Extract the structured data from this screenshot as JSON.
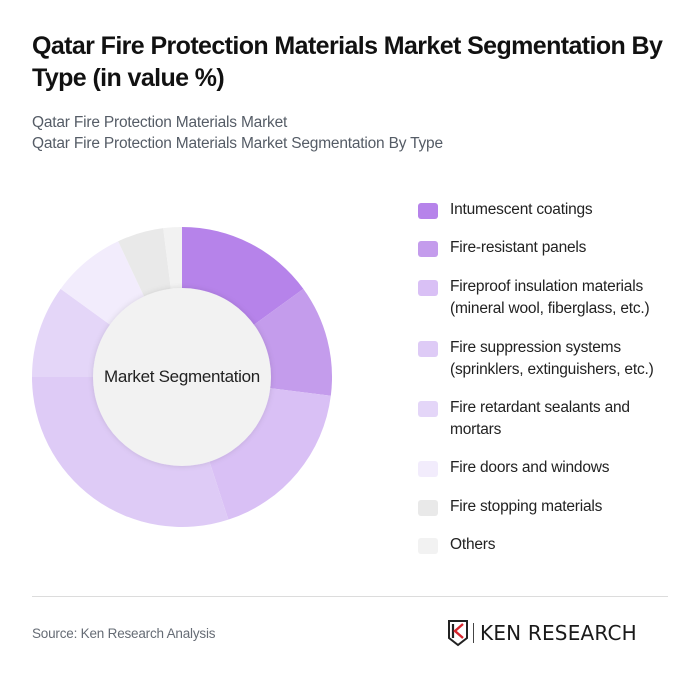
{
  "header": {
    "title": "Qatar Fire Protection Materials Market Segmentation By Type (in value %)",
    "subtitle_line1": "Qatar Fire Protection Materials Market",
    "subtitle_line2": "Qatar Fire Protection Materials Market Segmentation By Type"
  },
  "chart": {
    "center_label": "Market Segmentation"
  },
  "legend": [
    {
      "label": "Intumescent coatings",
      "color": "#B683EA"
    },
    {
      "label": "Fire-resistant panels",
      "color": "#C49CEC"
    },
    {
      "label": "Fireproof insulation materials (mineral wool, fiberglass, etc.)",
      "color": "#D9C0F5"
    },
    {
      "label": "Fire suppression systems (sprinklers, extinguishers, etc.)",
      "color": "#DECBF6"
    },
    {
      "label": "Fire retardant sealants and mortars",
      "color": "#E4D6F8"
    },
    {
      "label": "Fire doors and windows",
      "color": "#F2ECFC"
    },
    {
      "label": "Fire stopping materials",
      "color": "#E9E9E9"
    },
    {
      "label": "Others",
      "color": "#F2F2F2"
    }
  ],
  "footer": {
    "source": "Source: Ken Research Analysis",
    "logo_text": "KEN RESEARCH"
  },
  "chart_data": {
    "type": "pie",
    "subtype": "donut",
    "title": "Qatar Fire Protection Materials Market Segmentation By Type (in value %)",
    "center_label": "Market Segmentation",
    "categories": [
      "Intumescent coatings",
      "Fire-resistant panels",
      "Fireproof insulation materials (mineral wool, fiberglass, etc.)",
      "Fire suppression systems (sprinklers, extinguishers, etc.)",
      "Fire retardant sealants and mortars",
      "Fire doors and windows",
      "Fire stopping materials",
      "Others"
    ],
    "values": [
      15,
      12,
      18,
      30,
      10,
      8,
      5,
      2
    ],
    "colors": [
      "#B683EA",
      "#C49CEC",
      "#D9C0F5",
      "#DECBF6",
      "#E4D6F8",
      "#F2ECFC",
      "#E9E9E9",
      "#F2F2F2"
    ],
    "unit": "%",
    "legend_position": "right",
    "start_angle_deg": 0,
    "direction": "clockwise"
  }
}
